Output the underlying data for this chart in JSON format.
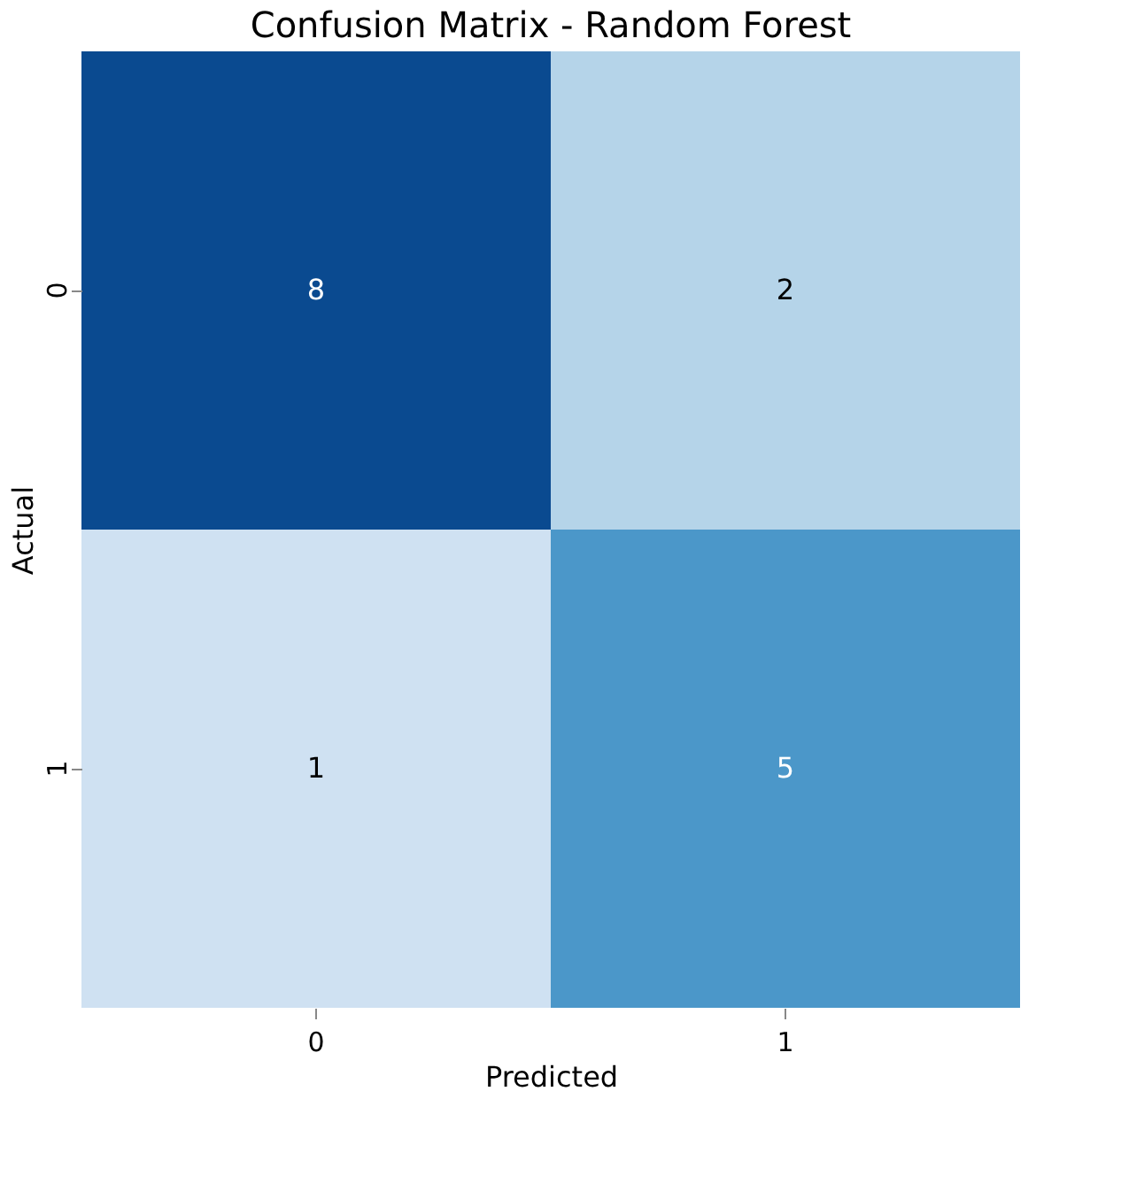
{
  "chart_data": {
    "type": "heatmap",
    "title": "Confusion Matrix - Random Forest",
    "xlabel": "Predicted",
    "ylabel": "Actual",
    "categories": [
      "0",
      "1"
    ],
    "y_categories": [
      "0",
      "1"
    ],
    "cells": [
      [
        8,
        2
      ],
      [
        1,
        5
      ]
    ],
    "data_labels": true
  }
}
